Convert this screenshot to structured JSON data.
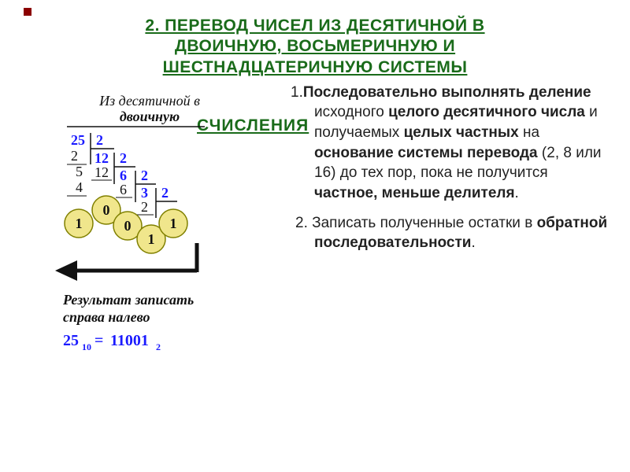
{
  "title_lines": [
    "2. ПЕРЕВОД ЧИСЕЛ ИЗ ДЕСЯТИЧНОЙ В",
    "ДВОИЧНУЮ, ВОСЬМЕРИЧНУЮ И",
    "ШЕСТНАДЦАТЕРИЧНУЮ СИСТЕМЫ"
  ],
  "title_overlap_word": "СЧИСЛЕНИЯ",
  "title_color": "#1a6b1a",
  "title_fontsize": 21,
  "accent_square_color": "#8B0000",
  "diagram": {
    "header_line1": "Из десятичной в",
    "header_line2": "двоичную",
    "divisions": {
      "d1": {
        "dividend": "25",
        "under_top": "2",
        "sub1": "5",
        "under_sub1": "4",
        "rem": "1",
        "divisor": "2",
        "quotient": "12"
      },
      "d2": {
        "dividend": "12",
        "under_top": "12",
        "rem": "0",
        "divisor": "2",
        "quotient": "6"
      },
      "d3": {
        "dividend": "6",
        "under_top": "6",
        "rem": "0",
        "divisor": "2",
        "quotient": "3"
      },
      "d4": {
        "dividend": "3",
        "under_top": "2",
        "rem": "1",
        "divisor": "2"
      },
      "d5": {
        "rem": "1"
      }
    },
    "circle_fill": "#F0E68C",
    "circle_stroke": "#808000",
    "number_color_blue": "#1a1aff",
    "number_color_black": "#111111",
    "line_color": "#111111",
    "arrow_label1": "Результат записать",
    "arrow_label2": "справа налево",
    "result_lhs_base": "25",
    "result_lhs_sub": "10",
    "result_eq": " = ",
    "result_rhs_base": "11001",
    "result_rhs_sub": "2",
    "font_family": "Times New Roman, serif"
  },
  "steps": {
    "s1_prefix": "1.",
    "s1_html_parts": [
      {
        "b": true,
        "t": "Последовательно выполнять деление"
      },
      {
        "b": false,
        "t": " исходного "
      },
      {
        "b": true,
        "t": "целого десятичного числа"
      },
      {
        "b": false,
        "t": " и получаемых "
      },
      {
        "b": true,
        "t": "целых частных"
      },
      {
        "b": false,
        "t": " на "
      },
      {
        "b": true,
        "t": "основание системы перевода"
      },
      {
        "b": false,
        "t": " (2, 8 или 16) до тех пор, пока не получится "
      },
      {
        "b": true,
        "t": "частное, меньше делителя"
      },
      {
        "b": false,
        "t": "."
      }
    ],
    "s2_prefix": "2.",
    "s2_html_parts": [
      {
        "b": false,
        "t": " Записать полученные остатки в "
      },
      {
        "b": true,
        "t": "обратной последовательности"
      },
      {
        "b": false,
        "t": "."
      }
    ],
    "text_color": "#222222",
    "text_fontsize": 19
  },
  "background_color": "#ffffff"
}
